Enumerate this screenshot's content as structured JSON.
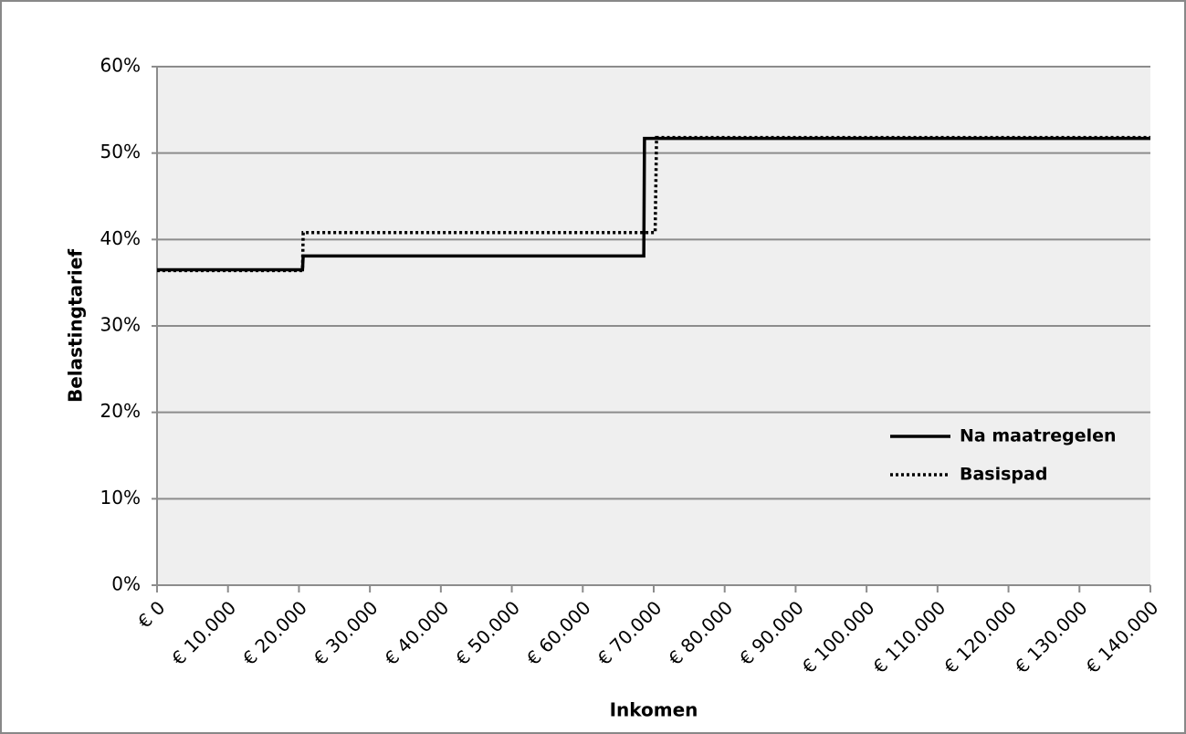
{
  "chart_data": {
    "type": "line",
    "x_label": "Inkomen",
    "y_label": "Belastingtarief",
    "series": [
      {
        "name": "Na maatregelen",
        "color": "#000000",
        "style": "solid",
        "x": [
          0,
          20500,
          20600,
          68600,
          68700,
          140000
        ],
        "values": [
          36.5,
          36.5,
          38.1,
          38.1,
          51.7,
          51.7
        ]
      },
      {
        "name": "Basispad",
        "color": "#000000",
        "style": "dotted",
        "x": [
          0,
          20500,
          20600,
          70200,
          70400,
          140000
        ],
        "values": [
          36.4,
          36.4,
          40.8,
          40.8,
          51.8,
          51.8
        ]
      }
    ],
    "xlim": [
      0,
      140000
    ],
    "xticks": [
      {
        "value": 0,
        "label": "€ 0"
      },
      {
        "value": 10000,
        "label": "€ 10.000"
      },
      {
        "value": 20000,
        "label": "€ 20.000"
      },
      {
        "value": 30000,
        "label": "€ 30.000"
      },
      {
        "value": 40000,
        "label": "€ 40.000"
      },
      {
        "value": 50000,
        "label": "€ 50.000"
      },
      {
        "value": 60000,
        "label": "€ 60.000"
      },
      {
        "value": 70000,
        "label": "€ 70.000"
      },
      {
        "value": 80000,
        "label": "€ 80.000"
      },
      {
        "value": 90000,
        "label": "€ 90.000"
      },
      {
        "value": 100000,
        "label": "€ 100.000"
      },
      {
        "value": 110000,
        "label": "€ 110.000"
      },
      {
        "value": 120000,
        "label": "€ 120.000"
      },
      {
        "value": 130000,
        "label": "€ 130.000"
      },
      {
        "value": 140000,
        "label": "€ 140.000"
      }
    ],
    "ylim": [
      0,
      60
    ],
    "yticks": [
      {
        "value": 0,
        "label": "0%"
      },
      {
        "value": 10,
        "label": "10%"
      },
      {
        "value": 20,
        "label": "20%"
      },
      {
        "value": 30,
        "label": "30%"
      },
      {
        "value": 40,
        "label": "40%"
      },
      {
        "value": 50,
        "label": "50%"
      },
      {
        "value": 60,
        "label": "60%"
      }
    ],
    "grid": true,
    "legend": "right"
  }
}
